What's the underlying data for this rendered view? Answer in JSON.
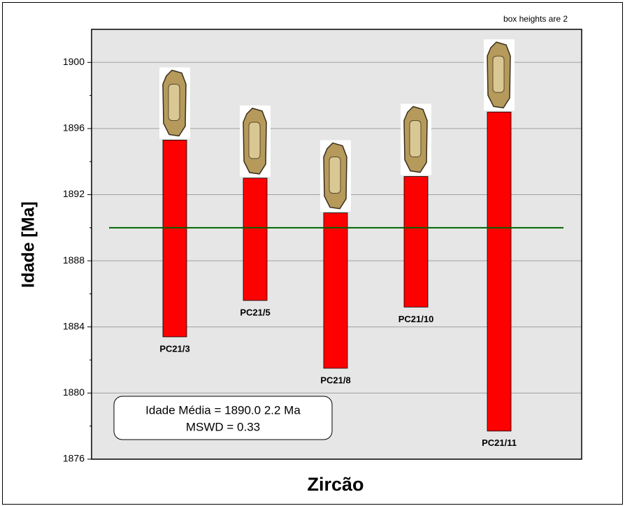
{
  "chart_data": {
    "type": "range_bar",
    "annotation": "box heights are 2",
    "ylabel": "Idade [Ma]",
    "xlabel": "Zircão",
    "summary": [
      "Idade Média = 1890.0   2.2 Ma",
      "MSWD = 0.33"
    ],
    "categories": [
      "PC21/3",
      "PC21/5",
      "PC21/8",
      "PC21/10",
      "PC21/11"
    ],
    "low": [
      1883.4,
      1885.6,
      1881.5,
      1885.2,
      1877.7
    ],
    "high": [
      1895.3,
      1893.0,
      1890.9,
      1893.1,
      1897.0
    ],
    "color": "#ff0000",
    "mean": 1890.0,
    "mean_color": "#006400",
    "ylim": [
      1876,
      1902
    ],
    "yticks": [
      1876,
      1880,
      1884,
      1888,
      1892,
      1896,
      1900
    ],
    "minor_yticks": [
      1878,
      1882,
      1886,
      1890,
      1894,
      1898
    ],
    "grid": true
  }
}
